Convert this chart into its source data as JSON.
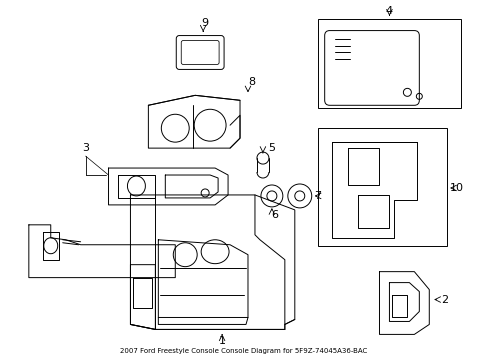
{
  "title": "2007 Ford Freestyle Console Console Diagram for 5F9Z-74045A36-BAC",
  "bg_color": "#ffffff",
  "line_color": "#000000",
  "line_width": 0.7,
  "fig_width": 4.89,
  "fig_height": 3.6,
  "dpi": 100
}
